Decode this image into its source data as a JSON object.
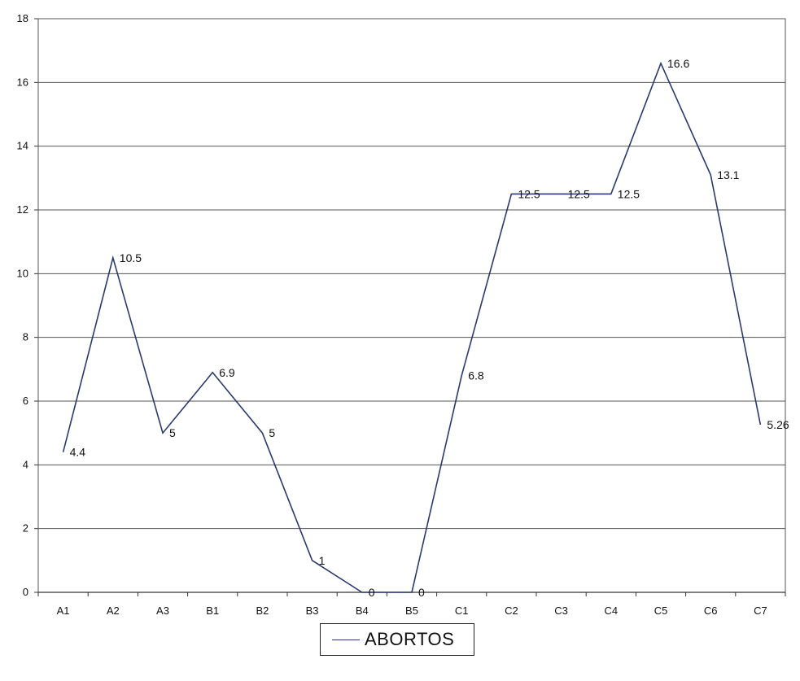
{
  "chart_data": {
    "type": "line",
    "categories": [
      "A1",
      "A2",
      "A3",
      "B1",
      "B2",
      "B3",
      "B4",
      "B5",
      "C1",
      "C2",
      "C3",
      "C4",
      "C5",
      "C6",
      "C7"
    ],
    "series": [
      {
        "name": "ABORTOS",
        "values": [
          4.4,
          10.5,
          5,
          6.9,
          5,
          1,
          0,
          0,
          6.8,
          12.5,
          12.5,
          12.5,
          16.6,
          13.1,
          5.26
        ],
        "data_labels": [
          "4.4",
          "10.5",
          "5",
          "6.9",
          "5",
          "1",
          "0",
          "0",
          "6.8",
          "12.5",
          "12.5",
          "12.5",
          "16.6",
          "13.1",
          "5.26"
        ],
        "color": "#2b3a6e"
      }
    ],
    "ylim": [
      0,
      18
    ],
    "yticks": [
      0,
      2,
      4,
      6,
      8,
      10,
      12,
      14,
      16,
      18
    ],
    "grid": true,
    "legend_position": "bottom-center",
    "title": "",
    "xlabel": "",
    "ylabel": ""
  },
  "legend": {
    "label": "ABORTOS"
  }
}
